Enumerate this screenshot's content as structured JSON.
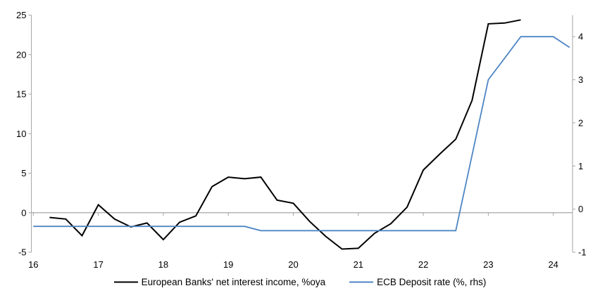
{
  "chart_data": {
    "type": "line",
    "title": "",
    "x_axis": {
      "min": 15.97,
      "max": 24.3,
      "ticks": [
        16,
        17,
        18,
        19,
        20,
        21,
        22,
        23,
        24
      ],
      "tick_labels": [
        "16",
        "17",
        "18",
        "19",
        "20",
        "21",
        "22",
        "23",
        "24"
      ]
    },
    "left_axis": {
      "min": -5,
      "max": 25,
      "ticks": [
        25,
        20,
        15,
        10,
        5,
        0,
        -5
      ],
      "tick_labels": [
        "25",
        "20",
        "15",
        "10",
        "5",
        "0",
        "-5"
      ]
    },
    "right_axis": {
      "min": -1,
      "max": 4.5,
      "ticks": [
        4,
        3,
        2,
        1,
        0,
        -1
      ],
      "tick_labels": [
        "4",
        "3",
        "2",
        "1",
        "0",
        "-1"
      ]
    },
    "zero_line_on_left_axis": true,
    "grid": false,
    "legend_position": "bottom",
    "series": [
      {
        "name": "European Banks' net interest income, %oya",
        "axis": "left",
        "color": "#000000",
        "stroke_width": 2,
        "x": [
          16.25,
          16.5,
          16.75,
          17.0,
          17.25,
          17.5,
          17.75,
          18.0,
          18.25,
          18.5,
          18.75,
          19.0,
          19.25,
          19.5,
          19.75,
          20.0,
          20.25,
          20.5,
          20.75,
          21.0,
          21.25,
          21.5,
          21.75,
          22.0,
          22.25,
          22.5,
          22.75,
          23.0,
          23.25,
          23.5
        ],
        "values": [
          -0.6,
          -0.8,
          -2.9,
          1.0,
          -0.8,
          -1.8,
          -1.3,
          -3.4,
          -1.2,
          -0.4,
          3.3,
          4.5,
          4.3,
          4.5,
          1.6,
          1.2,
          -1.1,
          -3.0,
          -4.6,
          -4.5,
          -2.6,
          -1.4,
          0.7,
          5.4,
          7.4,
          9.3,
          14.2,
          23.9,
          24.0,
          24.4
        ]
      },
      {
        "name": "ECB Deposit rate (%, rhs)",
        "axis": "right",
        "color": "#4e86c4",
        "stroke_width": 1.8,
        "x": [
          16.0,
          16.25,
          16.5,
          16.75,
          17.0,
          17.25,
          17.5,
          17.75,
          18.0,
          18.25,
          18.5,
          18.75,
          19.0,
          19.25,
          19.5,
          19.75,
          20.0,
          20.25,
          20.5,
          20.75,
          21.0,
          21.25,
          21.5,
          21.75,
          22.0,
          22.25,
          22.5,
          22.75,
          23.0,
          23.25,
          23.5,
          23.75,
          24.0,
          24.25
        ],
        "values": [
          -0.4,
          -0.4,
          -0.4,
          -0.4,
          -0.4,
          -0.4,
          -0.4,
          -0.4,
          -0.4,
          -0.4,
          -0.4,
          -0.4,
          -0.4,
          -0.4,
          -0.5,
          -0.5,
          -0.5,
          -0.5,
          -0.5,
          -0.5,
          -0.5,
          -0.5,
          -0.5,
          -0.5,
          -0.5,
          -0.5,
          -0.5,
          1.25,
          3.0,
          3.5,
          4.0,
          4.0,
          4.0,
          3.75
        ]
      }
    ]
  },
  "legend": {
    "items": [
      {
        "label": "European Banks' net interest income, %oya"
      },
      {
        "label": "ECB Deposit rate (%, rhs)"
      }
    ]
  },
  "colors": {
    "axis": "#a6a6a6",
    "zero_line": "#a6a6a6",
    "text": "#000000",
    "background": "#ffffff"
  }
}
